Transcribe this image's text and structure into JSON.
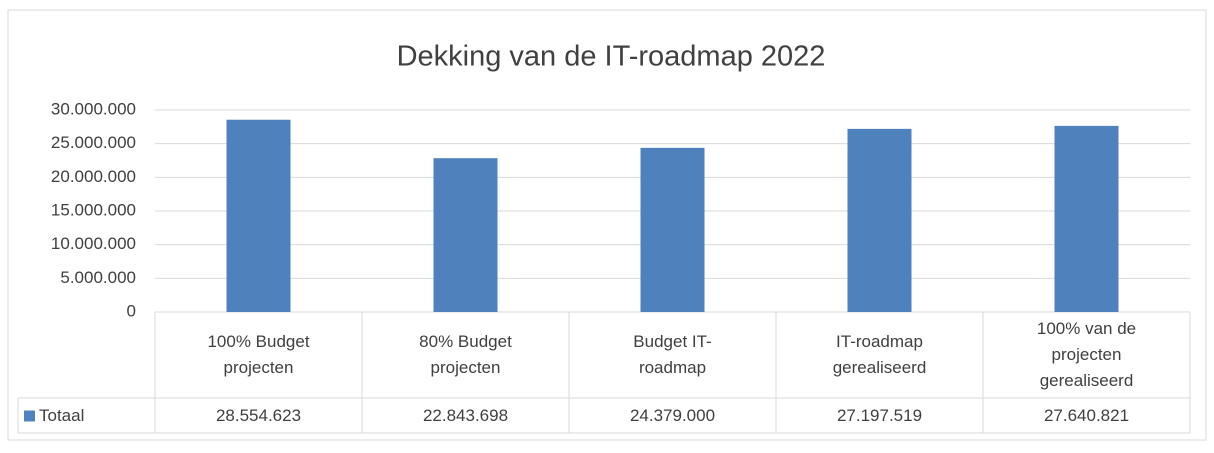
{
  "chart_data": {
    "type": "bar",
    "title": "Dekking van de IT-roadmap 2022",
    "categories": [
      "100% Budget projecten",
      "80% Budget projecten",
      "Budget IT-roadmap",
      "IT-roadmap gerealiseerd",
      "100% van de projecten gerealiseerd"
    ],
    "series": [
      {
        "name": "Totaal",
        "color": "#4f81bd",
        "values": [
          28554623,
          22843698,
          24379000,
          27197519,
          27640821
        ],
        "value_labels": [
          "28.554.623",
          "22.843.698",
          "24.379.000",
          "27.197.519",
          "27.640.821"
        ]
      }
    ],
    "ylim": [
      0,
      30000000
    ],
    "yticks": [
      0,
      {
        "value": 5000000,
        "label": "5.000.000"
      },
      {
        "value": 10000000,
        "label": "10.000.000"
      },
      {
        "value": 15000000,
        "label": "15.000.000"
      },
      {
        "value": 20000000,
        "label": "20.000.000"
      },
      {
        "value": 25000000,
        "label": "25.000.000"
      },
      {
        "value": 30000000,
        "label": "30.000.000"
      }
    ],
    "grid": true,
    "data_table": true
  }
}
